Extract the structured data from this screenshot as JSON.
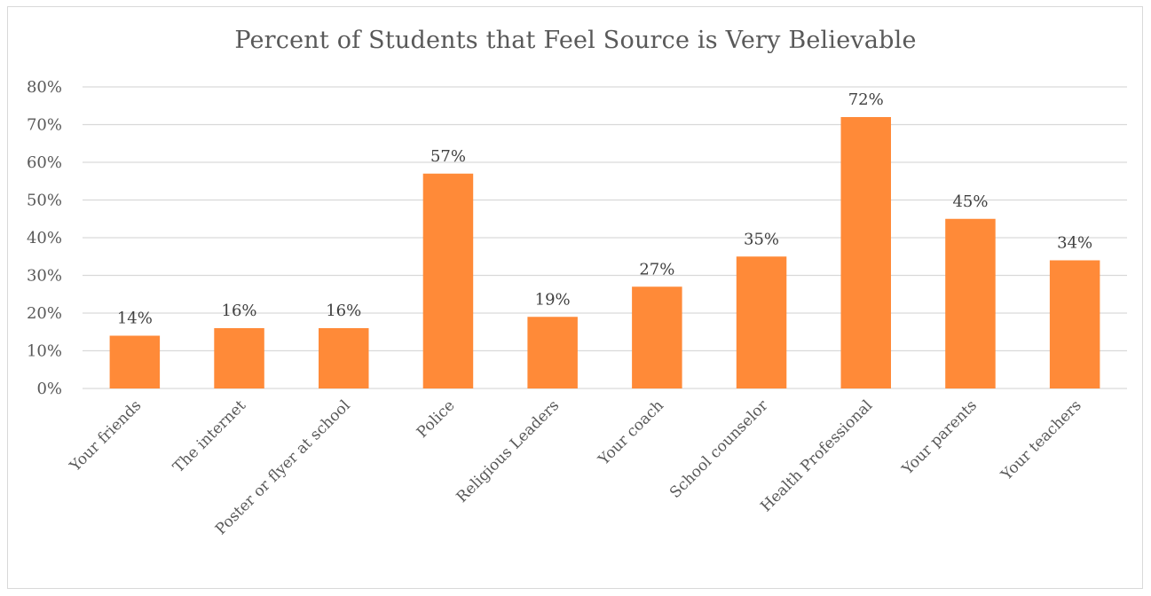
{
  "chart_data": {
    "type": "bar",
    "title": "Percent of Students that Feel Source is Very Believable",
    "xlabel": "",
    "ylabel": "",
    "categories": [
      "Your friends",
      "The internet",
      "Poster or flyer at school",
      "Police",
      "Religious Leaders",
      "Your coach",
      "School counselor",
      "Health Professional",
      "Your parents",
      "Your teachers"
    ],
    "values": [
      14,
      16,
      16,
      57,
      19,
      27,
      35,
      72,
      45,
      34
    ],
    "data_labels": [
      "14%",
      "16%",
      "16%",
      "57%",
      "19%",
      "27%",
      "35%",
      "72%",
      "45%",
      "34%"
    ],
    "ylim": [
      0,
      80
    ],
    "yticks": [
      0,
      10,
      20,
      30,
      40,
      50,
      60,
      70,
      80
    ],
    "ytick_labels": [
      "0%",
      "10%",
      "20%",
      "30%",
      "40%",
      "50%",
      "60%",
      "70%",
      "80%"
    ],
    "grid": true,
    "legend": "none",
    "bar_color": "#FF8A38",
    "grid_color": "#D9D9D9"
  }
}
